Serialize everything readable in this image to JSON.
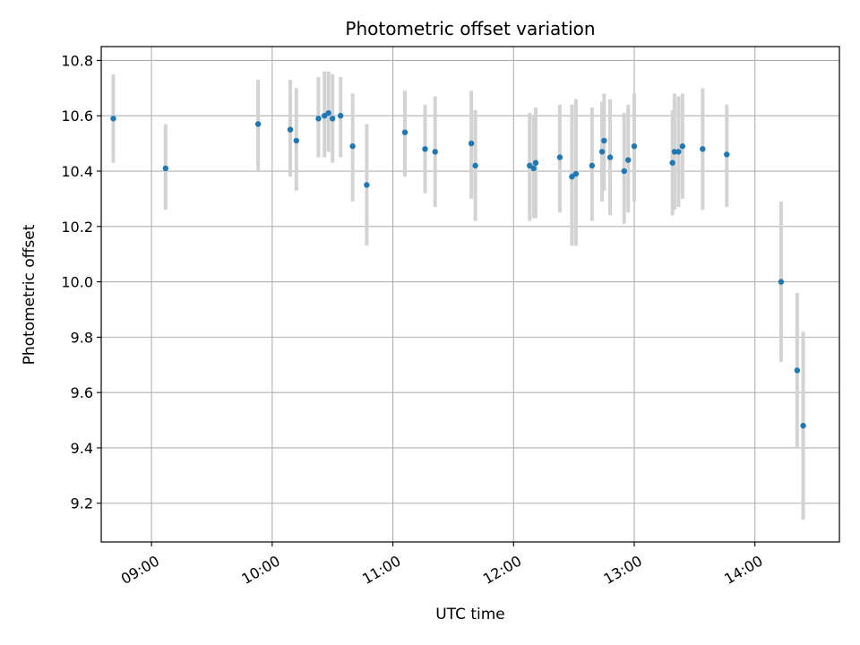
{
  "chart_data": {
    "type": "scatter",
    "title": "Photometric offset variation",
    "xlabel": "UTC time",
    "ylabel": "Photometric offset",
    "x_unit": "UTC time (HH:MM)",
    "xlim": [
      "08:35",
      "14:42"
    ],
    "ylim": [
      9.06,
      10.85
    ],
    "x_ticks": [
      "09:00",
      "10:00",
      "11:00",
      "12:00",
      "13:00",
      "14:00"
    ],
    "y_ticks": [
      9.2,
      9.4,
      9.6,
      9.8,
      10.0,
      10.2,
      10.4,
      10.6,
      10.8
    ],
    "grid": true,
    "legend": "none",
    "point_color": "#1f77b4",
    "errorbar_color": "#d3d3d3",
    "points": [
      {
        "x": "08:41",
        "y": 10.59,
        "lo": 10.43,
        "hi": 10.75
      },
      {
        "x": "09:07",
        "y": 10.41,
        "lo": 10.26,
        "hi": 10.57
      },
      {
        "x": "09:53",
        "y": 10.57,
        "lo": 10.4,
        "hi": 10.73
      },
      {
        "x": "10:09",
        "y": 10.55,
        "lo": 10.38,
        "hi": 10.73
      },
      {
        "x": "10:12",
        "y": 10.51,
        "lo": 10.33,
        "hi": 10.7
      },
      {
        "x": "10:23",
        "y": 10.59,
        "lo": 10.45,
        "hi": 10.74
      },
      {
        "x": "10:26",
        "y": 10.6,
        "lo": 10.45,
        "hi": 10.76
      },
      {
        "x": "10:28",
        "y": 10.61,
        "lo": 10.47,
        "hi": 10.76
      },
      {
        "x": "10:30",
        "y": 10.59,
        "lo": 10.43,
        "hi": 10.75
      },
      {
        "x": "10:34",
        "y": 10.6,
        "lo": 10.45,
        "hi": 10.74
      },
      {
        "x": "10:40",
        "y": 10.49,
        "lo": 10.29,
        "hi": 10.68
      },
      {
        "x": "10:47",
        "y": 10.35,
        "lo": 10.13,
        "hi": 10.57
      },
      {
        "x": "11:06",
        "y": 10.54,
        "lo": 10.38,
        "hi": 10.69
      },
      {
        "x": "11:16",
        "y": 10.48,
        "lo": 10.32,
        "hi": 10.64
      },
      {
        "x": "11:21",
        "y": 10.47,
        "lo": 10.27,
        "hi": 10.67
      },
      {
        "x": "11:39",
        "y": 10.5,
        "lo": 10.3,
        "hi": 10.69
      },
      {
        "x": "11:41",
        "y": 10.42,
        "lo": 10.22,
        "hi": 10.62
      },
      {
        "x": "12:08",
        "y": 10.42,
        "lo": 10.22,
        "hi": 10.61
      },
      {
        "x": "12:10",
        "y": 10.41,
        "lo": 10.23,
        "hi": 10.6
      },
      {
        "x": "12:11",
        "y": 10.43,
        "lo": 10.23,
        "hi": 10.63
      },
      {
        "x": "12:23",
        "y": 10.45,
        "lo": 10.25,
        "hi": 10.64
      },
      {
        "x": "12:29",
        "y": 10.38,
        "lo": 10.13,
        "hi": 10.64
      },
      {
        "x": "12:31",
        "y": 10.39,
        "lo": 10.13,
        "hi": 10.66
      },
      {
        "x": "12:39",
        "y": 10.42,
        "lo": 10.22,
        "hi": 10.63
      },
      {
        "x": "12:44",
        "y": 10.47,
        "lo": 10.29,
        "hi": 10.65
      },
      {
        "x": "12:45",
        "y": 10.51,
        "lo": 10.33,
        "hi": 10.68
      },
      {
        "x": "12:48",
        "y": 10.45,
        "lo": 10.24,
        "hi": 10.66
      },
      {
        "x": "12:55",
        "y": 10.4,
        "lo": 10.21,
        "hi": 10.61
      },
      {
        "x": "12:57",
        "y": 10.44,
        "lo": 10.25,
        "hi": 10.64
      },
      {
        "x": "13:00",
        "y": 10.49,
        "lo": 10.29,
        "hi": 10.68
      },
      {
        "x": "13:19",
        "y": 10.43,
        "lo": 10.24,
        "hi": 10.62
      },
      {
        "x": "13:20",
        "y": 10.47,
        "lo": 10.26,
        "hi": 10.68
      },
      {
        "x": "13:22",
        "y": 10.47,
        "lo": 10.27,
        "hi": 10.67
      },
      {
        "x": "13:24",
        "y": 10.49,
        "lo": 10.3,
        "hi": 10.68
      },
      {
        "x": "13:34",
        "y": 10.48,
        "lo": 10.26,
        "hi": 10.7
      },
      {
        "x": "13:46",
        "y": 10.46,
        "lo": 10.27,
        "hi": 10.64
      },
      {
        "x": "14:13",
        "y": 10.0,
        "lo": 9.71,
        "hi": 10.29
      },
      {
        "x": "14:21",
        "y": 9.68,
        "lo": 9.4,
        "hi": 9.96
      },
      {
        "x": "14:24",
        "y": 9.48,
        "lo": 9.14,
        "hi": 9.82
      }
    ]
  }
}
